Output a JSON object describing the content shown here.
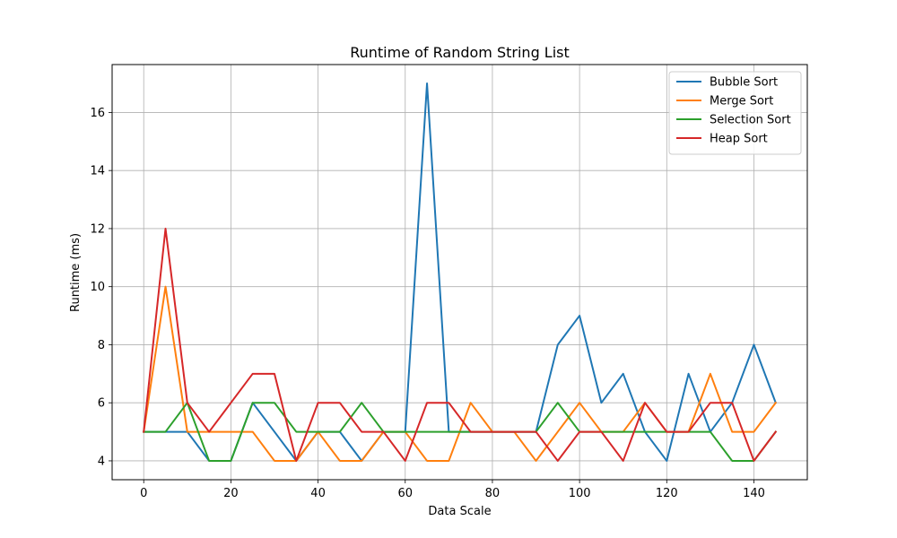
{
  "chart_data": {
    "type": "line",
    "title": "Runtime of Random String List",
    "xlabel": "Data Scale",
    "ylabel": "Runtime (ms)",
    "xlim": [
      -7.25,
      152.25
    ],
    "ylim": [
      3.35,
      17.65
    ],
    "xticks": [
      0,
      20,
      40,
      60,
      80,
      100,
      120,
      140
    ],
    "yticks": [
      4,
      6,
      8,
      10,
      12,
      14,
      16
    ],
    "grid": true,
    "legend_position": "top-right",
    "x": [
      0,
      5,
      10,
      15,
      20,
      25,
      30,
      35,
      40,
      45,
      50,
      55,
      60,
      65,
      70,
      75,
      80,
      85,
      90,
      95,
      100,
      105,
      110,
      115,
      120,
      125,
      130,
      135,
      140,
      145
    ],
    "series": [
      {
        "name": "Bubble Sort",
        "color": "#1f77b4",
        "values": [
          5,
          5,
          5,
          4,
          4,
          6,
          5,
          4,
          5,
          5,
          4,
          5,
          5,
          17,
          5,
          5,
          5,
          5,
          5,
          8,
          9,
          6,
          7,
          5,
          4,
          7,
          5,
          6,
          8,
          6
        ]
      },
      {
        "name": "Merge Sort",
        "color": "#ff7f0e",
        "values": [
          5,
          10,
          5,
          5,
          5,
          5,
          4,
          4,
          5,
          4,
          4,
          5,
          5,
          4,
          4,
          6,
          5,
          5,
          4,
          5,
          6,
          5,
          5,
          6,
          5,
          5,
          7,
          5,
          5,
          6
        ]
      },
      {
        "name": "Selection Sort",
        "color": "#2ca02c",
        "values": [
          5,
          5,
          6,
          4,
          4,
          6,
          6,
          5,
          5,
          5,
          6,
          5,
          5,
          5,
          5,
          5,
          5,
          5,
          5,
          6,
          5,
          5,
          5,
          5,
          5,
          5,
          5,
          4,
          4,
          5
        ]
      },
      {
        "name": "Heap Sort",
        "color": "#d62728",
        "values": [
          5,
          12,
          6,
          5,
          6,
          7,
          7,
          4,
          6,
          6,
          5,
          5,
          4,
          6,
          6,
          5,
          5,
          5,
          5,
          4,
          5,
          5,
          4,
          6,
          5,
          5,
          6,
          6,
          4,
          5
        ]
      }
    ]
  }
}
